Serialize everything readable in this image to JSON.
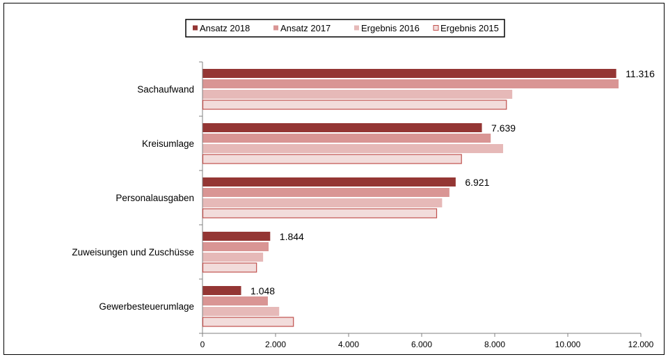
{
  "chart_data": {
    "type": "bar",
    "orientation": "horizontal",
    "categories": [
      "Sachaufwand",
      "Kreisumlage",
      "Personalausgaben",
      "Zuweisungen und Zuschüsse",
      "Gewerbesteuerumlage"
    ],
    "series": [
      {
        "name": "Ansatz 2018",
        "values": [
          11316,
          7639,
          6921,
          1844,
          1048
        ],
        "color": "#943634"
      },
      {
        "name": "Ansatz 2017",
        "values": [
          11380,
          7880,
          6750,
          1800,
          1780
        ],
        "color": "#D99594"
      },
      {
        "name": "Ergebnis 2016",
        "values": [
          8470,
          8220,
          6550,
          1650,
          2090
        ],
        "color": "#E6B9B8"
      },
      {
        "name": "Ergebnis 2015",
        "values": [
          8310,
          7080,
          6400,
          1470,
          2480
        ],
        "color": "#F2DCDB",
        "border": "#C0504D"
      }
    ],
    "data_labels": [
      "11.316",
      "7.639",
      "6.921",
      "1.844",
      "1.048"
    ],
    "x_ticks": [
      0,
      2000,
      4000,
      6000,
      8000,
      10000,
      12000
    ],
    "x_tick_labels": [
      "0",
      "2.000",
      "4.000",
      "6.000",
      "8.000",
      "10.000",
      "12.000"
    ],
    "xlim": [
      0,
      12000
    ],
    "legend_position": "top",
    "grid": false,
    "title": "",
    "xlabel": "",
    "ylabel": ""
  }
}
